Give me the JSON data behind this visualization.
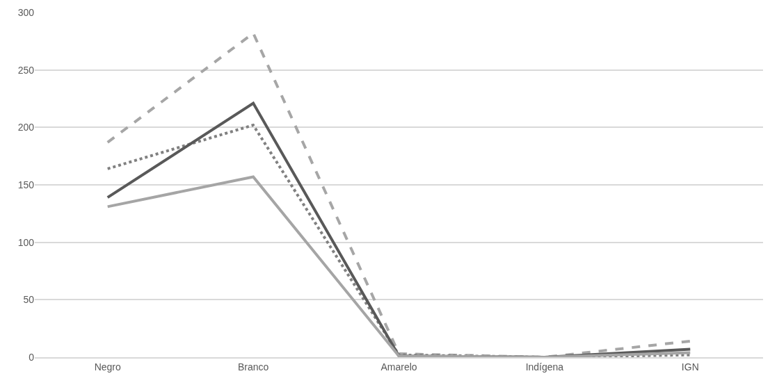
{
  "chart_data": {
    "type": "line",
    "categories": [
      "Negro",
      "Branco",
      "Amarelo",
      "Indígena",
      "IGN"
    ],
    "series": [
      {
        "color": "#a6a6a6",
        "line_style": "dashed",
        "values": [
          187,
          282,
          3,
          0,
          14
        ]
      },
      {
        "color": "#808080",
        "line_style": "dotted",
        "values": [
          164,
          202,
          2,
          0,
          2
        ]
      },
      {
        "color": "#595959",
        "line_style": "solid",
        "values": [
          139,
          221,
          1,
          0,
          7
        ]
      },
      {
        "color": "#a5a5a5",
        "line_style": "solid",
        "values": [
          131,
          157,
          1,
          0,
          4
        ]
      }
    ],
    "ylim": [
      0,
      300
    ],
    "yticks": [
      0,
      50,
      100,
      150,
      200,
      250,
      300
    ],
    "grid": "y",
    "marker": "none"
  }
}
